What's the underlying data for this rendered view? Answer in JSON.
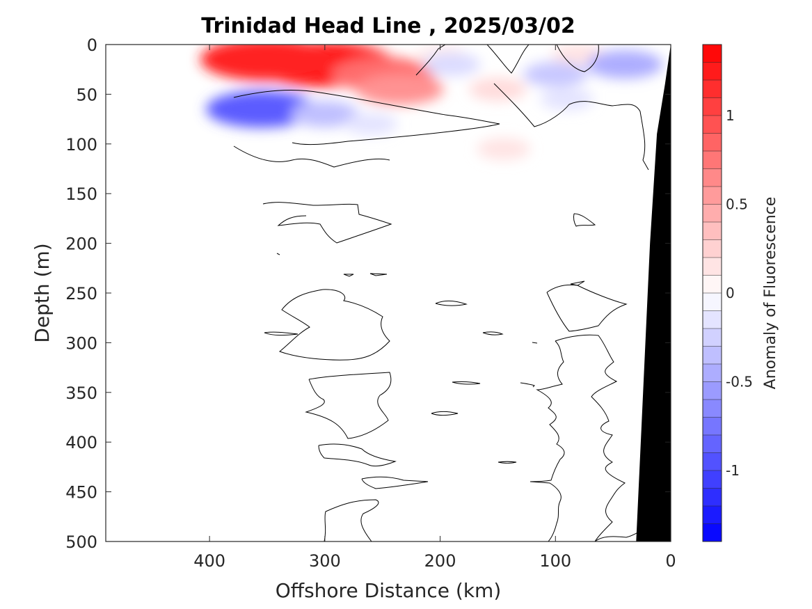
{
  "chart_data": {
    "type": "heatmap",
    "subtype": "filled-contour",
    "title": "Trinidad Head Line , 2025/03/02",
    "xlabel": "Offshore Distance (km)",
    "ylabel": "Depth (m)",
    "xlim": [
      490,
      0
    ],
    "ylim": [
      0,
      500
    ],
    "x_reversed": true,
    "y_reversed": true,
    "x_ticks": [
      400,
      300,
      200,
      100,
      0
    ],
    "y_ticks": [
      0,
      50,
      100,
      150,
      200,
      250,
      300,
      350,
      400,
      450,
      500
    ],
    "grid": false,
    "colormap": "blue-white-red diverging",
    "colorbar": {
      "label": "Anomaly of Fluorescence",
      "range": [
        -1.4,
        1.4
      ],
      "levels": 28,
      "ticks": [
        -1,
        -0.5,
        0,
        0.5,
        1
      ],
      "tick_labels": [
        "-1",
        "-0.5",
        "0",
        "0.5",
        "1"
      ],
      "color_min": "#0000ff",
      "color_zero": "#ffffff",
      "color_max": "#ff0000"
    },
    "data_extent_x": [
      380,
      0
    ],
    "seafloor_color": "#000000",
    "seafloor_profile": [
      [
        0,
        0
      ],
      [
        5,
        40
      ],
      [
        12,
        90
      ],
      [
        18,
        200
      ],
      [
        24,
        350
      ],
      [
        30,
        500
      ]
    ],
    "anomaly_regions": [
      {
        "x": 300,
        "depth": 20,
        "value": 1.3
      },
      {
        "x": 350,
        "depth": 15,
        "value": 1.2
      },
      {
        "x": 250,
        "depth": 30,
        "value": 0.8
      },
      {
        "x": 235,
        "depth": 45,
        "value": 0.6
      },
      {
        "x": 150,
        "depth": 45,
        "value": 0.2
      },
      {
        "x": 200,
        "depth": 10,
        "value": 0.1
      },
      {
        "x": 80,
        "depth": 10,
        "value": 0.15
      },
      {
        "x": 355,
        "depth": 65,
        "value": -0.9
      },
      {
        "x": 300,
        "depth": 70,
        "value": -0.35
      },
      {
        "x": 260,
        "depth": 80,
        "value": -0.15
      },
      {
        "x": 190,
        "depth": 20,
        "value": -0.2
      },
      {
        "x": 100,
        "depth": 30,
        "value": -0.3
      },
      {
        "x": 40,
        "depth": 20,
        "value": -0.45
      },
      {
        "x": 90,
        "depth": 55,
        "value": -0.15
      },
      {
        "x": 145,
        "depth": 105,
        "value": 0.15
      }
    ]
  }
}
